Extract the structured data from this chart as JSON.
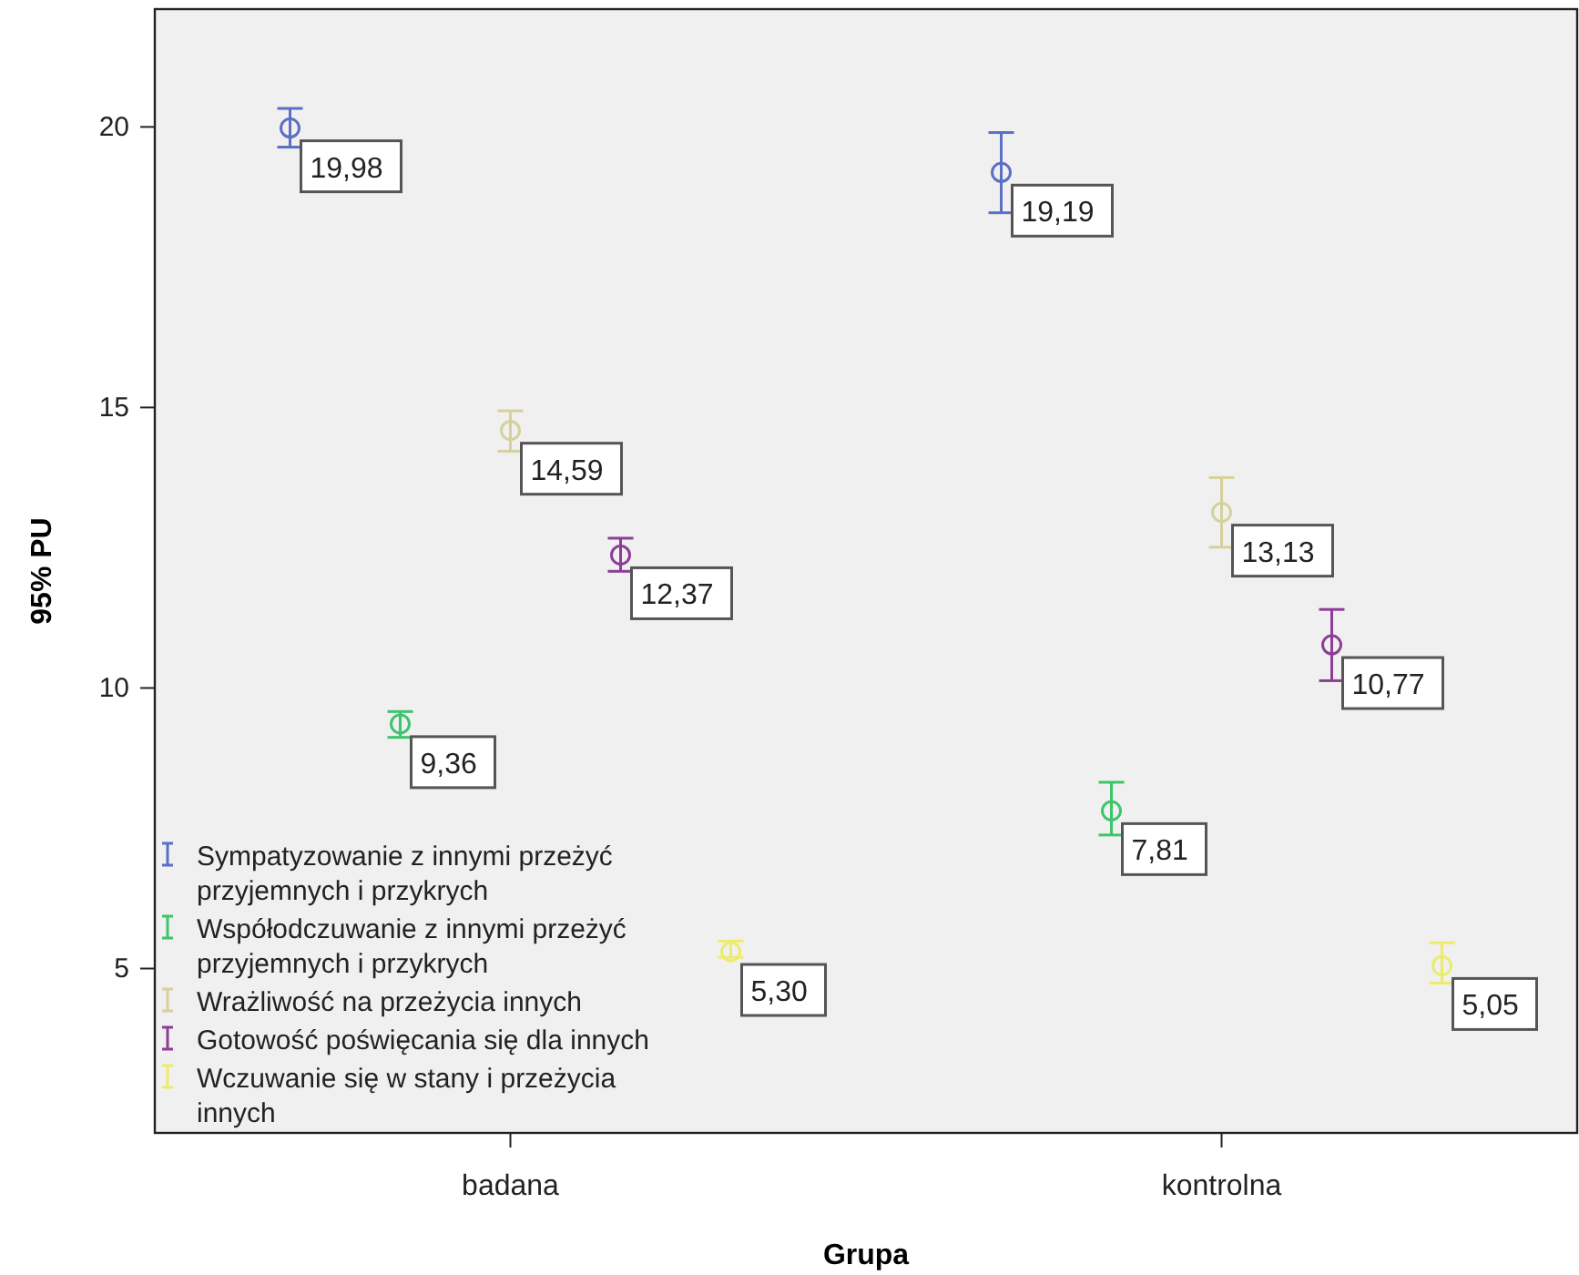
{
  "chart_data": {
    "type": "scatter",
    "xlabel": "Grupa",
    "ylabel": "95% PU",
    "categories": [
      "badana",
      "kontrolna"
    ],
    "ylim": [
      2.07,
      22.1
    ],
    "yticks": [
      5,
      10,
      15,
      20
    ],
    "marker": "circle",
    "legend": "bottom left",
    "grid": false,
    "series": [
      {
        "name": "Sympatyzowanie z innymi przeżyć przyjemnych i przykrych",
        "color": "#5b6fc4",
        "values": [
          19.98,
          19.19
        ],
        "value_labels": [
          "19,98",
          "19,19"
        ],
        "errors": [
          [
            19.64,
            20.33
          ],
          [
            18.47,
            19.9
          ]
        ]
      },
      {
        "name": "Współodczuwanie z innymi przeżyć przyjemnych i przykrych",
        "color": "#3ec46a",
        "values": [
          9.36,
          7.81
        ],
        "value_labels": [
          "9,36",
          "7,81"
        ],
        "errors": [
          [
            9.12,
            9.58
          ],
          [
            7.38,
            8.32
          ]
        ]
      },
      {
        "name": "Wrażliwość na przeżycia innych",
        "color": "#d6d09c",
        "values": [
          14.59,
          13.13
        ],
        "value_labels": [
          "14,59",
          "13,13"
        ],
        "errors": [
          [
            14.22,
            14.94
          ],
          [
            12.51,
            13.75
          ]
        ]
      },
      {
        "name": "Gotowość poświęcania się dla innych",
        "color": "#8e3d96",
        "values": [
          12.37,
          10.77
        ],
        "value_labels": [
          "12,37",
          "10,77"
        ],
        "errors": [
          [
            12.08,
            12.67
          ],
          [
            10.13,
            11.4
          ]
        ]
      },
      {
        "name": "Wczuwanie się w stany i przeżycia innych",
        "color": "#ecec6c",
        "values": [
          5.3,
          5.05
        ],
        "value_labels": [
          "5,30",
          "5,05"
        ],
        "errors": [
          [
            5.2,
            5.49
          ],
          [
            4.74,
            5.46
          ]
        ]
      }
    ]
  }
}
